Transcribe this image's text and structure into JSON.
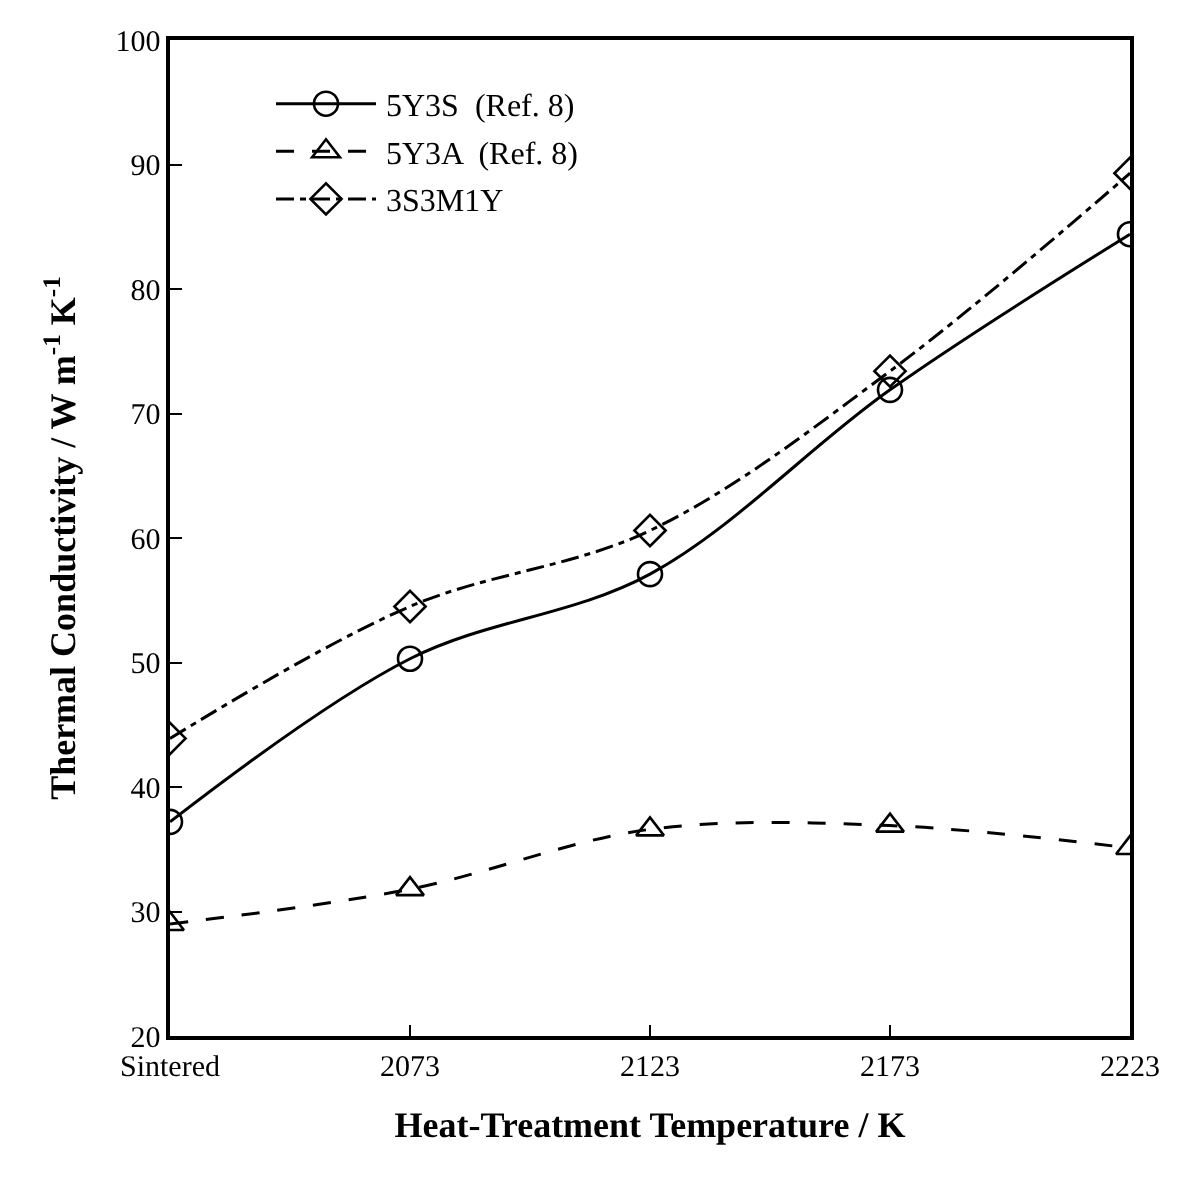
{
  "chart_data": {
    "type": "line",
    "xlabel": "Heat-Treatment Temperature / K",
    "ylabel": "Thermal Conductivity / W m$^{-1}$ K$^{-1}$",
    "categories": [
      "Sintered",
      "2073",
      "2123",
      "2173",
      "2223"
    ],
    "series": [
      {
        "name": "5Y3S  (Ref. 8)",
        "color": "#000000",
        "marker": "circle",
        "line_style": "solid",
        "values": [
          37.2,
          50.3,
          57.1,
          71.9,
          84.4
        ]
      },
      {
        "name": "5Y3A  (Ref. 8)",
        "color": "#000000",
        "marker": "triangle",
        "line_style": "dashed",
        "values": [
          29.0,
          31.8,
          36.6,
          36.9,
          35.1
        ]
      },
      {
        "name": "3S3M1Y",
        "color": "#000000",
        "marker": "diamond",
        "line_style": "dashdot",
        "values": [
          43.9,
          54.5,
          60.6,
          73.4,
          89.3
        ]
      }
    ],
    "ylim": [
      20,
      100
    ],
    "yticks": [
      20,
      30,
      40,
      50,
      60,
      70,
      80,
      90,
      100
    ],
    "legend": "top left"
  }
}
